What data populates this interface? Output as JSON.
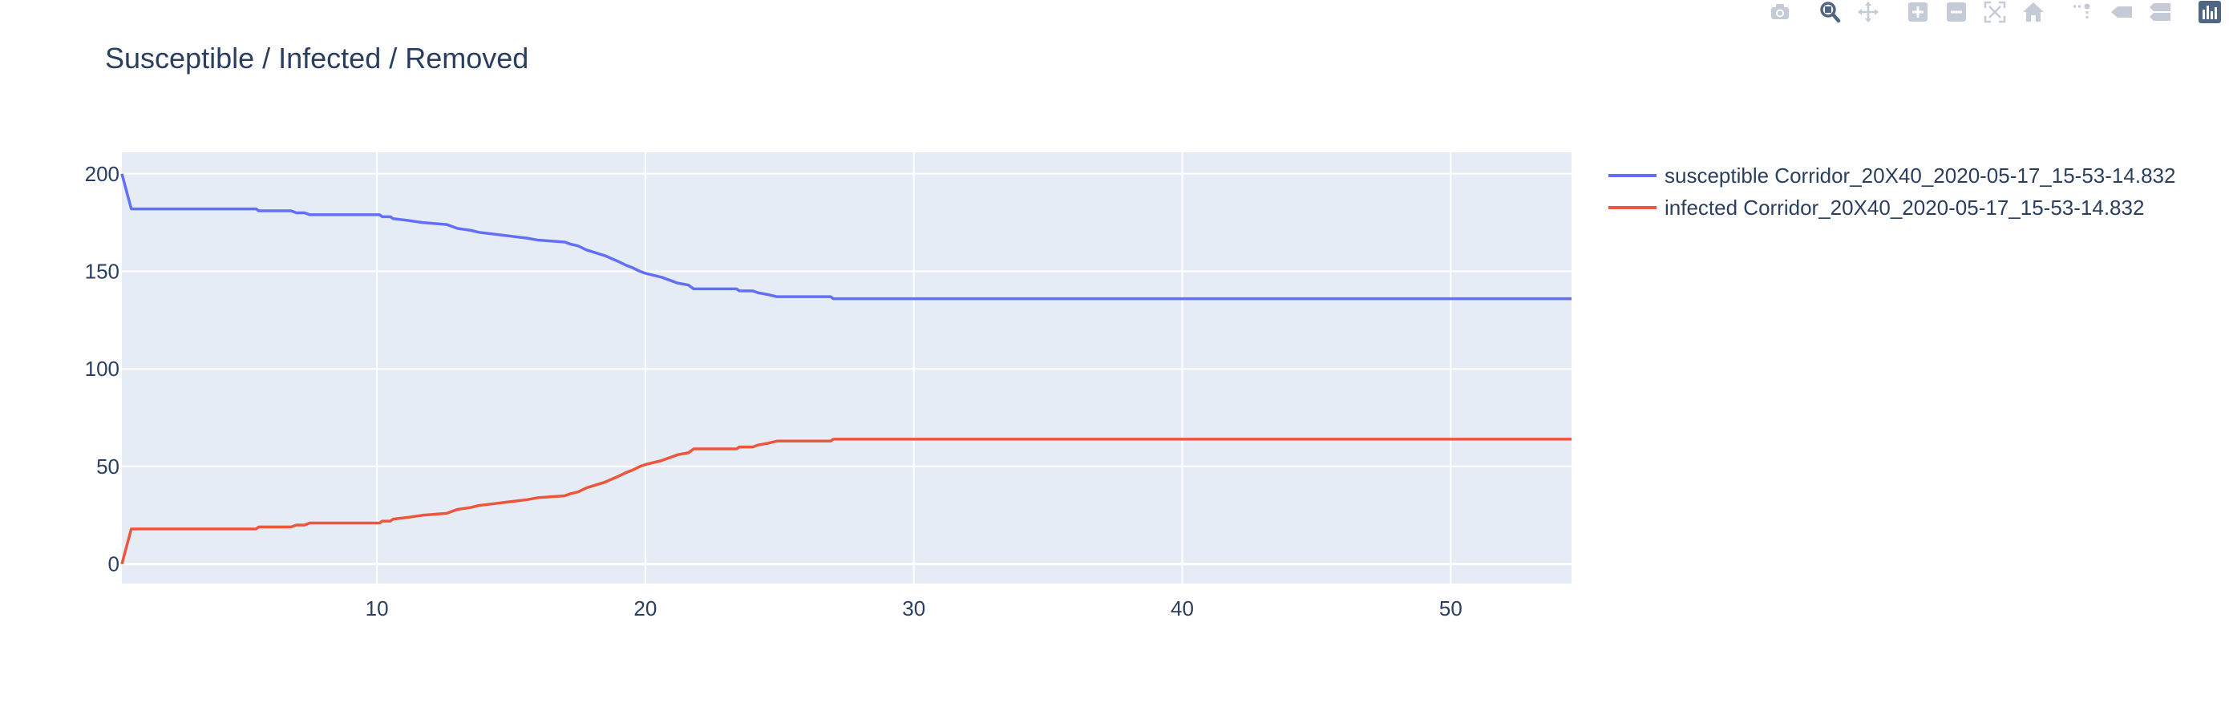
{
  "title": "Susceptible / Infected / Removed",
  "colors": {
    "plot_bg": "#e5ecf6",
    "grid": "#ffffff",
    "text": "#2a3f5f",
    "susceptible": "#636efa",
    "infected": "#ef553b",
    "modebar_icon": "#c4cbd6",
    "modebar_active": "#506784"
  },
  "modebar": [
    {
      "name": "camera-icon"
    },
    {
      "name": "zoom-icon"
    },
    {
      "name": "pan-icon"
    },
    {
      "name": "zoom-in-icon"
    },
    {
      "name": "zoom-out-icon"
    },
    {
      "name": "autoscale-icon"
    },
    {
      "name": "reset-axes-icon"
    },
    {
      "name": "spike-lines-icon"
    },
    {
      "name": "hover-closest-icon"
    },
    {
      "name": "hover-compare-icon"
    },
    {
      "name": "plotly-logo-icon"
    }
  ],
  "chart_data": {
    "type": "line",
    "title": "Susceptible / Infected / Removed",
    "xlabel": "",
    "ylabel": "",
    "xlim": [
      0.5,
      54.5
    ],
    "ylim": [
      -10,
      211
    ],
    "x_ticks": [
      10,
      20,
      30,
      40,
      50
    ],
    "y_ticks": [
      0,
      50,
      100,
      150,
      200
    ],
    "grid": true,
    "legend_position": "right",
    "series": [
      {
        "name": "susceptible Corridor_20X40_2020-05-17_15-53-14.832",
        "color": "#636efa",
        "x": [
          0.5,
          0.85,
          5.5,
          5.6,
          6.8,
          7.0,
          7.3,
          7.5,
          10.1,
          10.2,
          10.5,
          10.6,
          11.2,
          11.7,
          12.6,
          12.8,
          13.0,
          13.5,
          13.8,
          14.4,
          15.0,
          15.6,
          16.0,
          17.0,
          17.2,
          17.5,
          17.8,
          18.5,
          19.0,
          19.3,
          19.5,
          19.8,
          20.0,
          20.6,
          21.0,
          21.2,
          21.6,
          21.8,
          23.4,
          23.5,
          24.0,
          24.2,
          24.6,
          24.9,
          26.9,
          27.0,
          54.5
        ],
        "y": [
          200,
          182,
          182,
          181,
          181,
          180,
          180,
          179,
          179,
          178,
          178,
          177,
          176,
          175,
          174,
          173,
          172,
          171,
          170,
          169,
          168,
          167,
          166,
          165,
          164,
          163,
          161,
          158,
          155,
          153,
          152,
          150,
          149,
          147,
          145,
          144,
          143,
          141,
          141,
          140,
          140,
          139,
          138,
          137,
          137,
          136,
          136
        ]
      },
      {
        "name": "infected Corridor_20X40_2020-05-17_15-53-14.832",
        "color": "#ef553b",
        "x": [
          0.5,
          0.85,
          5.5,
          5.6,
          6.8,
          7.0,
          7.3,
          7.5,
          10.1,
          10.2,
          10.5,
          10.6,
          11.2,
          11.7,
          12.6,
          12.8,
          13.0,
          13.5,
          13.8,
          14.4,
          15.0,
          15.6,
          16.0,
          17.0,
          17.2,
          17.5,
          17.8,
          18.5,
          19.0,
          19.3,
          19.5,
          19.8,
          20.0,
          20.6,
          21.0,
          21.2,
          21.6,
          21.8,
          23.4,
          23.5,
          24.0,
          24.2,
          24.6,
          24.9,
          26.9,
          27.0,
          54.5
        ],
        "y": [
          0,
          18,
          18,
          19,
          19,
          20,
          20,
          21,
          21,
          22,
          22,
          23,
          24,
          25,
          26,
          27,
          28,
          29,
          30,
          31,
          32,
          33,
          34,
          35,
          36,
          37,
          39,
          42,
          45,
          47,
          48,
          50,
          51,
          53,
          55,
          56,
          57,
          59,
          59,
          60,
          60,
          61,
          62,
          63,
          63,
          64,
          64
        ]
      }
    ]
  }
}
